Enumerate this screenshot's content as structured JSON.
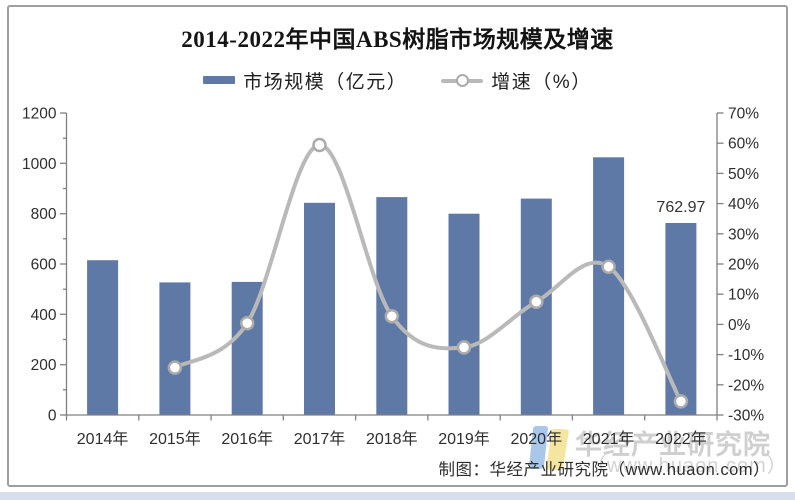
{
  "title": "2014-2022年中国ABS树脂市场规模及增速",
  "legend": {
    "market_label": "市场规模（亿元）",
    "growth_label": "增速（%）"
  },
  "chart_data": {
    "type": "bar",
    "subtype": "bar+line combo, secondary percent axis",
    "title": "2014-2022年中国ABS树脂市场规模及增速",
    "categories": [
      "2014年",
      "2015年",
      "2016年",
      "2017年",
      "2018年",
      "2019年",
      "2020年",
      "2021年",
      "2022年"
    ],
    "series": [
      {
        "name": "市场规模（亿元）",
        "type": "bar",
        "axis": "left",
        "values": [
          615,
          527,
          529,
          843,
          866,
          800,
          860,
          1024,
          762.97
        ]
      },
      {
        "name": "增速（%）",
        "type": "line",
        "axis": "right",
        "values": [
          null,
          -14.3,
          0.4,
          59.4,
          2.7,
          -7.6,
          7.5,
          19.1,
          -25.5
        ]
      }
    ],
    "left_axis": {
      "min": 0,
      "max": 1200,
      "step": 200,
      "ticks": [
        "0",
        "200",
        "400",
        "600",
        "800",
        "1000",
        "1200"
      ]
    },
    "right_axis": {
      "min": -30,
      "max": 70,
      "step": 10,
      "ticks": [
        "-30%",
        "-20%",
        "-10%",
        "0%",
        "10%",
        "20%",
        "30%",
        "40%",
        "50%",
        "60%",
        "70%"
      ]
    },
    "data_labels": [
      {
        "category": "2022年",
        "series": "市场规模（亿元）",
        "text": "762.97"
      }
    ],
    "legend_position": "top",
    "grid": false,
    "colors": {
      "bar": "#5f79a6",
      "line": "#b9b9b9",
      "marker_fill": "#ffffff",
      "marker_stroke": "#ababab",
      "axis": "#808080",
      "tick_label": "#2e2e2e"
    }
  },
  "footer": {
    "credit": "制图：华经产业研究院（www.huaon.com）"
  },
  "watermark": {
    "text": "华经产业研究院",
    "url": "（www.huaon.com）"
  }
}
